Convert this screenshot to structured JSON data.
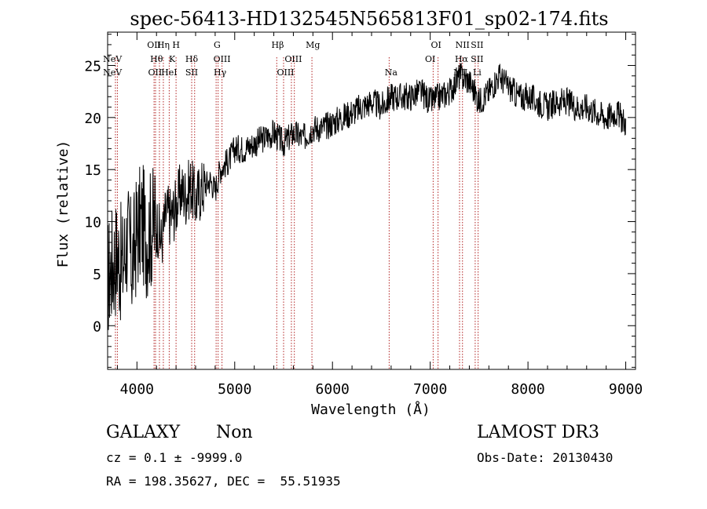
{
  "chart_data": {
    "type": "line",
    "title": "spec-56413-HD132545N565813F01_sp02-174.fits",
    "xlabel": "Wavelength (Å)",
    "ylabel": "Flux (relative)",
    "xlim": [
      3700,
      9100
    ],
    "ylim": [
      -4.2,
      28.2
    ],
    "x_ticks": [
      4000,
      5000,
      6000,
      7000,
      8000,
      9000
    ],
    "y_ticks": [
      0,
      5,
      10,
      15,
      20,
      25
    ],
    "line_color": "#000000",
    "marker_color": "#b22222",
    "series": [
      {
        "x": [
          3700,
          3750,
          3800,
          3850,
          3900,
          3950,
          4000,
          4050,
          4100,
          4150,
          4200,
          4250,
          4300,
          4350,
          4400,
          4450,
          4500,
          4550,
          4600,
          4650,
          4700,
          4750,
          4800,
          4850,
          4900,
          4950,
          5000,
          5100,
          5200,
          5300,
          5400,
          5500,
          5600,
          5700,
          5800,
          5900,
          6000,
          6100,
          6200,
          6300,
          6400,
          6500,
          6600,
          6700,
          6800,
          6900,
          7000,
          7100,
          7200,
          7300,
          7400,
          7500,
          7600,
          7700,
          7800,
          7900,
          8000,
          8100,
          8200,
          8300,
          8400,
          8500,
          8600,
          8700,
          8800,
          8900,
          9000
        ],
        "y": [
          4.5,
          6.0,
          7.0,
          5.5,
          8.5,
          6.0,
          9.0,
          10.0,
          8.5,
          9.5,
          10.0,
          8.0,
          11.0,
          10.5,
          11.5,
          13.0,
          12.5,
          13.5,
          12.0,
          13.0,
          13.5,
          14.0,
          13.0,
          15.0,
          15.5,
          16.0,
          17.0,
          17.0,
          17.5,
          18.0,
          18.5,
          17.5,
          18.5,
          18.0,
          19.0,
          19.0,
          19.5,
          20.0,
          20.5,
          21.0,
          21.5,
          21.0,
          22.0,
          22.0,
          22.0,
          22.5,
          21.5,
          22.0,
          22.5,
          24.0,
          23.5,
          21.5,
          22.5,
          24.0,
          23.0,
          22.0,
          22.0,
          21.5,
          21.0,
          21.5,
          21.5,
          21.0,
          21.0,
          20.5,
          20.0,
          20.5,
          19.5
        ]
      }
    ],
    "lines": [
      {
        "label": "NeV",
        "x": 3426,
        "row": 1,
        "label_x": 3750
      },
      {
        "label": "NeV",
        "x": 3346,
        "row": 2,
        "label_x": 3750
      },
      {
        "label": "OII",
        "x": 3727,
        "row": 0,
        "label_x": 4175
      },
      {
        "label": "Hη",
        "x": 3835,
        "row": 0,
        "label_x": 4270
      },
      {
        "label": "H",
        "x": 3968,
        "row": 0,
        "label_x": 4400
      },
      {
        "label": "Hθ",
        "x": 3797,
        "row": 1,
        "label_x": 4200
      },
      {
        "label": "K",
        "x": 3934,
        "row": 1,
        "label_x": 4360
      },
      {
        "label": "Hδ",
        "x": 4102,
        "row": 1,
        "label_x": 4560
      },
      {
        "label": "OII",
        "x": 3727,
        "row": 2,
        "label_x": 4185
      },
      {
        "label": "HeI",
        "x": 3889,
        "row": 2,
        "label_x": 4330
      },
      {
        "label": "SII",
        "x": 4072,
        "row": 2,
        "label_x": 4560
      },
      {
        "label": "G",
        "x": 4304,
        "row": 0,
        "label_x": 4820
      },
      {
        "label": "OIII",
        "x": 4363,
        "row": 1,
        "label_x": 4870
      },
      {
        "label": "Hγ",
        "x": 4340,
        "row": 2,
        "label_x": 4850
      },
      {
        "label": "Hβ",
        "x": 4861,
        "row": 0,
        "label_x": 5440
      },
      {
        "label": "OIII",
        "x": 5007,
        "row": 1,
        "label_x": 5600
      },
      {
        "label": "OIII",
        "x": 4959,
        "row": 2,
        "label_x": 5520
      },
      {
        "label": "Mg",
        "x": 5175,
        "row": 0,
        "label_x": 5800
      },
      {
        "label": "Na",
        "x": 5893,
        "row": 2,
        "label_x": 6600
      },
      {
        "label": "OI",
        "x": 6300,
        "row": 0,
        "label_x": 7060
      },
      {
        "label": "OI",
        "x": 6364,
        "row": 1,
        "label_x": 7000
      },
      {
        "label": "NII",
        "x": 6583,
        "row": 0,
        "label_x": 7330
      },
      {
        "label": "SII",
        "x": 6716,
        "row": 0,
        "label_x": 7480
      },
      {
        "label": "Hα",
        "x": 6563,
        "row": 1,
        "label_x": 7320
      },
      {
        "label": "SII",
        "x": 6731,
        "row": 1,
        "label_x": 7480
      },
      {
        "label": "NII",
        "x": 6548,
        "row": 2,
        "label_x": 7310
      },
      {
        "label": "Li",
        "x": 6708,
        "row": 2,
        "label_x": 7480
      }
    ],
    "line_marker_positions": [
      3780,
      3800,
      4175,
      4190,
      4230,
      4270,
      4330,
      4400,
      4560,
      4590,
      4810,
      4830,
      4870,
      5430,
      5500,
      5580,
      5610,
      5790,
      6580,
      7030,
      7080,
      7300,
      7330,
      7460,
      7490
    ]
  },
  "footer": {
    "object_class": "GALAXY",
    "subclass": "Non",
    "survey": "LAMOST DR3",
    "cz_line": "cz = 0.1 ± -9999.0",
    "obs_date_line": "Obs-Date: 20130430",
    "coords_line": "RA = 198.35627, DEC =  55.51935"
  }
}
